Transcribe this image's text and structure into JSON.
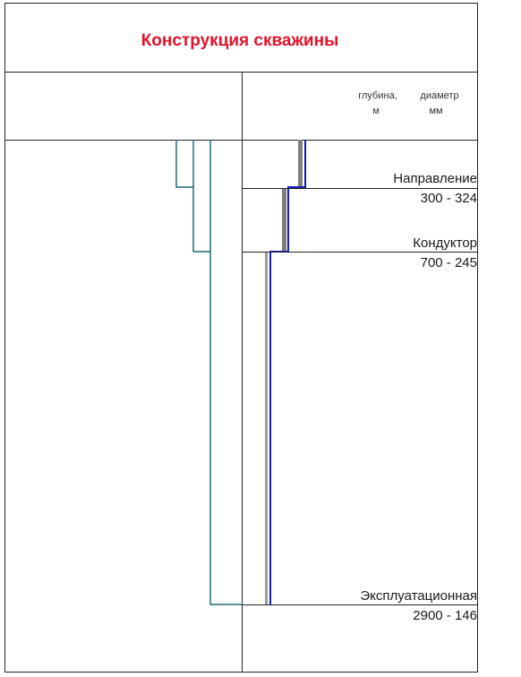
{
  "title": "Конструкция скважины",
  "header": {
    "depth_label": "глубина,",
    "depth_unit": "м",
    "diameter_label": "диаметр",
    "diameter_unit": "мм"
  },
  "strings": [
    {
      "name": "Направление",
      "spec": "300 - 324"
    },
    {
      "name": "Кондуктор",
      "spec": "700 - 245"
    },
    {
      "name": "Эксплуатационная",
      "spec": "2900 - 146"
    }
  ],
  "colors": {
    "title": "#e3122b",
    "grid": "#222222",
    "left_casing": "#1f6b7a",
    "right_casing": "#1a1ab8",
    "shadow": "#7f7f7f"
  }
}
